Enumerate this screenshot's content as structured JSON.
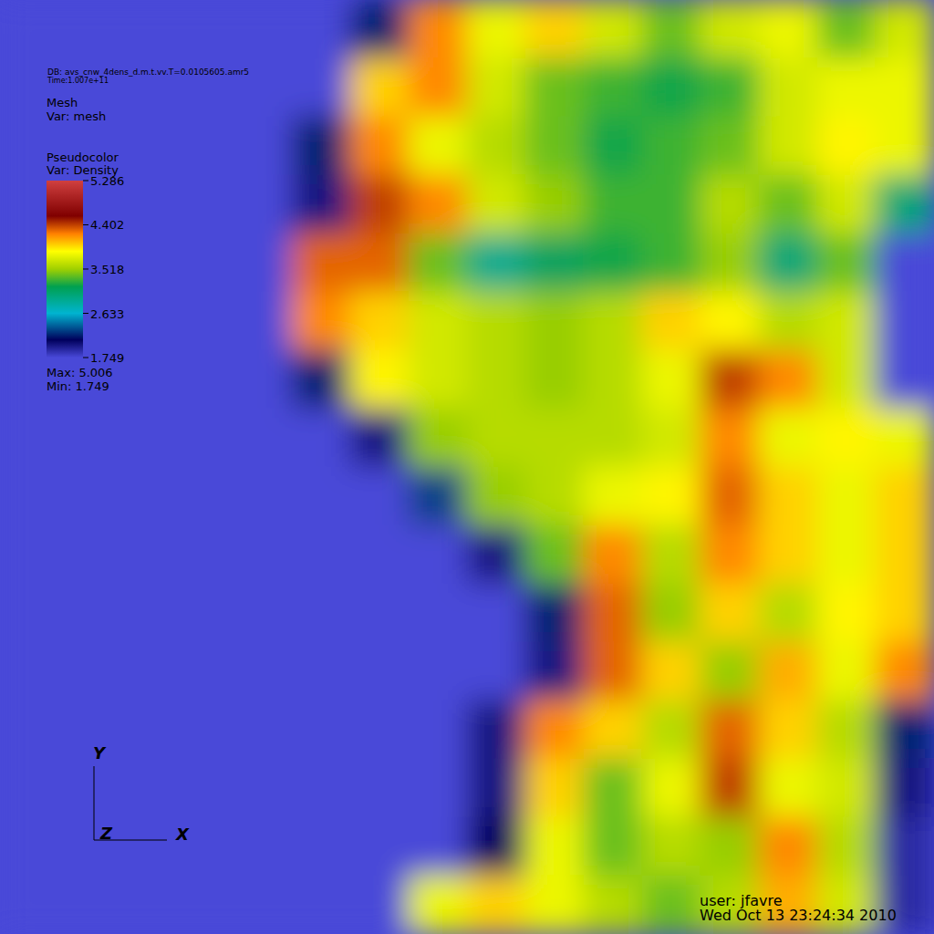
{
  "chart_data": {
    "type": "heatmap",
    "title": "DB: avs_cnw_4dens_d.m.t.vv.T=0.0105605.amr5",
    "subtitle": "Time:1.007e+11",
    "annotations": [
      "Mesh",
      "Var: mesh",
      "Pseudocolor",
      "Var: Density",
      "user: jfavre",
      "Wed Oct 13 23:24:34 2010"
    ],
    "axis_labels": [
      "Y",
      "Z",
      "X"
    ],
    "colorbar": {
      "range": [
        1.749,
        5.286
      ],
      "ticks": [
        5.286,
        4.402,
        3.518,
        2.633,
        1.749
      ]
    },
    "max": {
      "value": 5.006,
      "label": "Max: 5.006"
    },
    "min": {
      "value": 1.749,
      "label": "Min: 1.749"
    },
    "cells": [
      [
        1.749,
        1.749,
        1.749,
        1.749,
        1.749,
        1.749,
        2.2,
        4.2,
        3.8,
        4.0,
        3.7,
        3.4,
        3.7,
        3.8,
        3.4,
        3.7
      ],
      [
        1.749,
        1.749,
        1.749,
        1.749,
        1.749,
        1.749,
        4.0,
        4.2,
        3.7,
        3.4,
        3.3,
        3.2,
        3.3,
        3.7,
        3.8,
        3.8
      ],
      [
        1.749,
        1.749,
        1.749,
        1.749,
        1.749,
        2.2,
        4.2,
        3.8,
        3.6,
        3.4,
        3.2,
        3.3,
        3.4,
        3.7,
        3.9,
        3.8
      ],
      [
        1.749,
        1.749,
        1.749,
        1.749,
        1.749,
        2.0,
        4.4,
        4.2,
        3.7,
        3.5,
        3.3,
        3.3,
        3.6,
        3.4,
        3.7,
        3.0
      ],
      [
        1.749,
        1.749,
        1.749,
        1.749,
        1.749,
        4.3,
        4.3,
        3.4,
        2.9,
        3.1,
        3.2,
        3.3,
        3.5,
        3.0,
        3.4,
        1.749
      ],
      [
        1.749,
        1.749,
        1.749,
        1.749,
        1.749,
        4.2,
        4.0,
        3.7,
        3.6,
        3.5,
        3.6,
        4.0,
        3.9,
        3.6,
        3.7,
        1.749
      ],
      [
        1.749,
        1.749,
        1.749,
        1.749,
        1.749,
        2.2,
        3.9,
        3.7,
        3.6,
        3.5,
        3.6,
        3.8,
        4.4,
        4.2,
        3.7,
        1.749
      ],
      [
        1.749,
        1.749,
        1.749,
        1.749,
        1.749,
        1.749,
        2.0,
        3.5,
        3.6,
        3.6,
        3.6,
        3.7,
        4.2,
        3.8,
        3.9,
        3.8
      ],
      [
        1.749,
        1.749,
        1.749,
        1.749,
        1.749,
        1.749,
        1.749,
        2.3,
        3.5,
        3.6,
        3.8,
        3.9,
        4.3,
        4.0,
        3.8,
        4.0
      ],
      [
        1.749,
        1.749,
        1.749,
        1.749,
        1.749,
        1.749,
        1.749,
        1.749,
        2.0,
        3.4,
        4.2,
        3.6,
        4.2,
        4.0,
        3.8,
        4.0
      ],
      [
        1.749,
        1.749,
        1.749,
        1.749,
        1.749,
        1.749,
        1.749,
        1.749,
        1.749,
        2.2,
        4.3,
        3.5,
        4.0,
        3.6,
        3.9,
        4.0
      ],
      [
        1.749,
        1.749,
        1.749,
        1.749,
        1.749,
        1.749,
        1.749,
        1.749,
        1.749,
        2.0,
        4.3,
        4.0,
        3.5,
        4.1,
        3.8,
        4.2
      ],
      [
        1.749,
        1.749,
        1.749,
        1.749,
        1.749,
        1.749,
        1.749,
        1.749,
        2.0,
        4.2,
        4.0,
        3.6,
        4.3,
        4.0,
        3.6,
        2.2
      ],
      [
        1.749,
        1.749,
        1.749,
        1.749,
        1.749,
        1.749,
        1.749,
        1.749,
        2.0,
        4.0,
        3.4,
        3.8,
        4.4,
        3.8,
        3.7,
        2.0
      ],
      [
        1.749,
        1.749,
        1.749,
        1.749,
        1.749,
        1.749,
        1.749,
        1.749,
        2.1,
        3.8,
        3.4,
        3.6,
        3.5,
        4.2,
        3.6,
        1.9
      ],
      [
        1.749,
        1.749,
        1.749,
        1.749,
        1.749,
        1.749,
        1.749,
        3.8,
        4.0,
        3.8,
        3.6,
        3.4,
        3.6,
        4.1,
        3.7,
        1.9
      ]
    ]
  }
}
